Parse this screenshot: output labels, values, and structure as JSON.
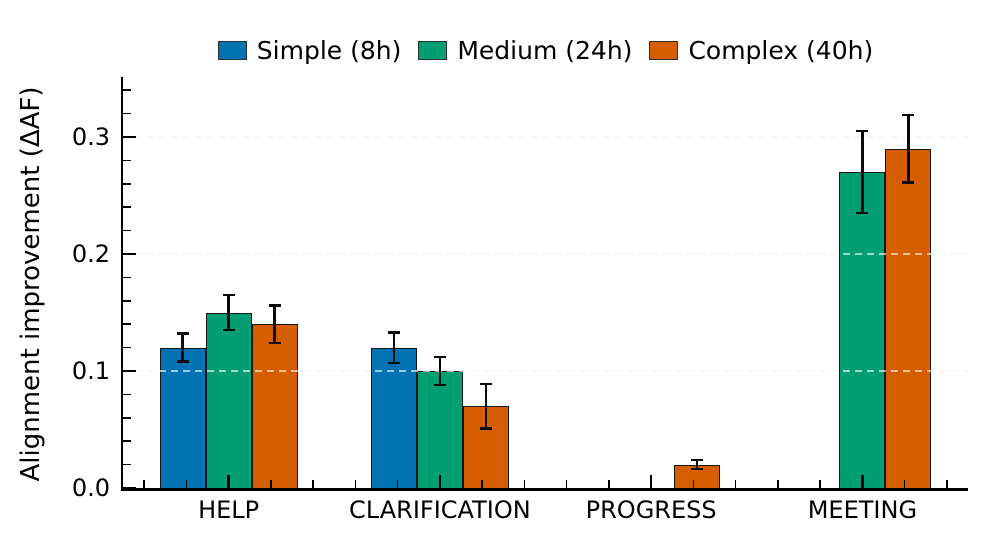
{
  "chart_data": {
    "type": "bar",
    "title": "",
    "ylabel": "Alignment improvement (ΔAF)",
    "xlabel": "",
    "categories": [
      "HELP",
      "CLARIFICATION",
      "PROGRESS",
      "MEETING"
    ],
    "series": [
      {
        "name": "Simple (8h)",
        "color": "#0173b2",
        "values": [
          0.12,
          0.12,
          0,
          0
        ],
        "errors": [
          0.012,
          0.013,
          0,
          0
        ]
      },
      {
        "name": "Medium (24h)",
        "color": "#029e73",
        "values": [
          0.15,
          0.1,
          0,
          0.27
        ],
        "errors": [
          0.015,
          0.012,
          0,
          0.035
        ]
      },
      {
        "name": "Complex (40h)",
        "color": "#d55e00",
        "values": [
          0.14,
          0.07,
          0.02,
          0.29
        ],
        "errors": [
          0.016,
          0.019,
          0.004,
          0.029
        ]
      }
    ],
    "yticks": [
      0.0,
      0.1,
      0.2,
      0.3
    ],
    "ytick_labels": [
      "0.0",
      "0.1",
      "0.2",
      "0.3"
    ],
    "ylim": [
      0,
      0.35
    ],
    "y_minor_step": 0.02,
    "x_minor_step": 0.2,
    "grid": "horizontal dashed at major y ticks, drawn over bars",
    "legend_position": "top center",
    "error_bars": "symmetric with caps",
    "text_color": "#000000",
    "grid_color": "#e9e9e9",
    "spine_color": "#000000"
  }
}
